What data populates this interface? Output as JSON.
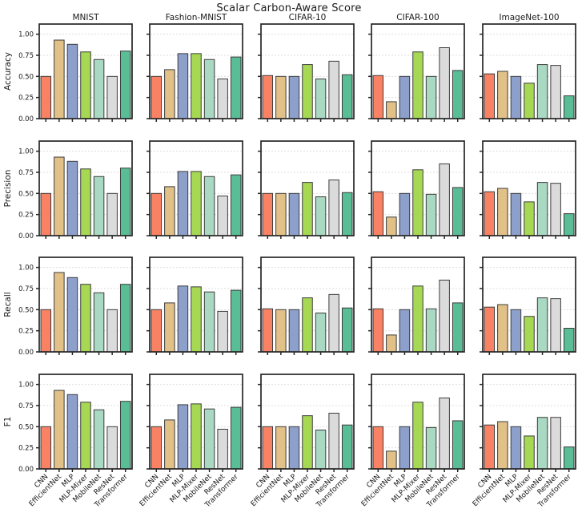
{
  "figure": {
    "title": "Scalar Carbon-Aware Score"
  },
  "chart_data": {
    "type": "bar",
    "title": "Scalar Carbon-Aware Score",
    "layout": "grid of 20 subplots: 4 metric rows x 5 dataset columns",
    "grid": {
      "rows": [
        "Accuracy",
        "Precision",
        "Recall",
        "F1"
      ],
      "cols": [
        "MNIST",
        "Fashion-MNIST",
        "CIFAR-10",
        "CIFAR-100",
        "ImageNet-100"
      ]
    },
    "categories": [
      "CNN",
      "EfficientNet",
      "MLP",
      "MLP-Mixer",
      "MobileNet",
      "ResNet",
      "Transformer"
    ],
    "bar_colors": [
      "#FA8264",
      "#E2C189",
      "#8DA0CB",
      "#A6D854",
      "#A9D8C3",
      "#DBDBDB",
      "#59BD96"
    ],
    "bar_edge_color": "#3c3c3c",
    "xlabel": "",
    "ylim": [
      0,
      1.12
    ],
    "yticks": [
      "0.00",
      "0.25",
      "0.50",
      "0.75",
      "1.00"
    ],
    "ytick_values": [
      0,
      0.25,
      0.5,
      0.75,
      1.0
    ],
    "gridlines": "horizontal dashed",
    "legend_position": "none",
    "values": {
      "Accuracy": {
        "MNIST": [
          0.5,
          0.93,
          0.88,
          0.79,
          0.7,
          0.5,
          0.8
        ],
        "Fashion-MNIST": [
          0.5,
          0.58,
          0.77,
          0.77,
          0.7,
          0.47,
          0.73
        ],
        "CIFAR-10": [
          0.51,
          0.5,
          0.5,
          0.64,
          0.47,
          0.68,
          0.52
        ],
        "CIFAR-100": [
          0.51,
          0.2,
          0.5,
          0.79,
          0.5,
          0.84,
          0.57
        ],
        "ImageNet-100": [
          0.53,
          0.56,
          0.5,
          0.42,
          0.64,
          0.63,
          0.27
        ]
      },
      "Precision": {
        "MNIST": [
          0.5,
          0.93,
          0.88,
          0.79,
          0.7,
          0.5,
          0.8
        ],
        "Fashion-MNIST": [
          0.5,
          0.58,
          0.76,
          0.76,
          0.7,
          0.47,
          0.72
        ],
        "CIFAR-10": [
          0.5,
          0.5,
          0.5,
          0.63,
          0.46,
          0.66,
          0.51
        ],
        "CIFAR-100": [
          0.52,
          0.22,
          0.5,
          0.78,
          0.49,
          0.85,
          0.57
        ],
        "ImageNet-100": [
          0.52,
          0.56,
          0.5,
          0.4,
          0.63,
          0.62,
          0.26
        ]
      },
      "Recall": {
        "MNIST": [
          0.5,
          0.94,
          0.88,
          0.8,
          0.7,
          0.5,
          0.8
        ],
        "Fashion-MNIST": [
          0.5,
          0.58,
          0.78,
          0.77,
          0.71,
          0.48,
          0.73
        ],
        "CIFAR-10": [
          0.51,
          0.5,
          0.5,
          0.64,
          0.46,
          0.68,
          0.52
        ],
        "CIFAR-100": [
          0.51,
          0.2,
          0.5,
          0.78,
          0.51,
          0.85,
          0.58
        ],
        "ImageNet-100": [
          0.53,
          0.56,
          0.5,
          0.42,
          0.64,
          0.63,
          0.28
        ]
      },
      "F1": {
        "MNIST": [
          0.5,
          0.93,
          0.88,
          0.79,
          0.7,
          0.5,
          0.8
        ],
        "Fashion-MNIST": [
          0.5,
          0.58,
          0.76,
          0.77,
          0.71,
          0.47,
          0.73
        ],
        "CIFAR-10": [
          0.5,
          0.5,
          0.5,
          0.63,
          0.46,
          0.66,
          0.52
        ],
        "CIFAR-100": [
          0.5,
          0.21,
          0.5,
          0.79,
          0.49,
          0.84,
          0.57
        ],
        "ImageNet-100": [
          0.52,
          0.56,
          0.5,
          0.39,
          0.61,
          0.61,
          0.26
        ]
      }
    }
  },
  "style": {
    "spine_color": "#262626",
    "grid_color": "#d9d9d9",
    "tick_label_color": "#1a1a1a"
  }
}
